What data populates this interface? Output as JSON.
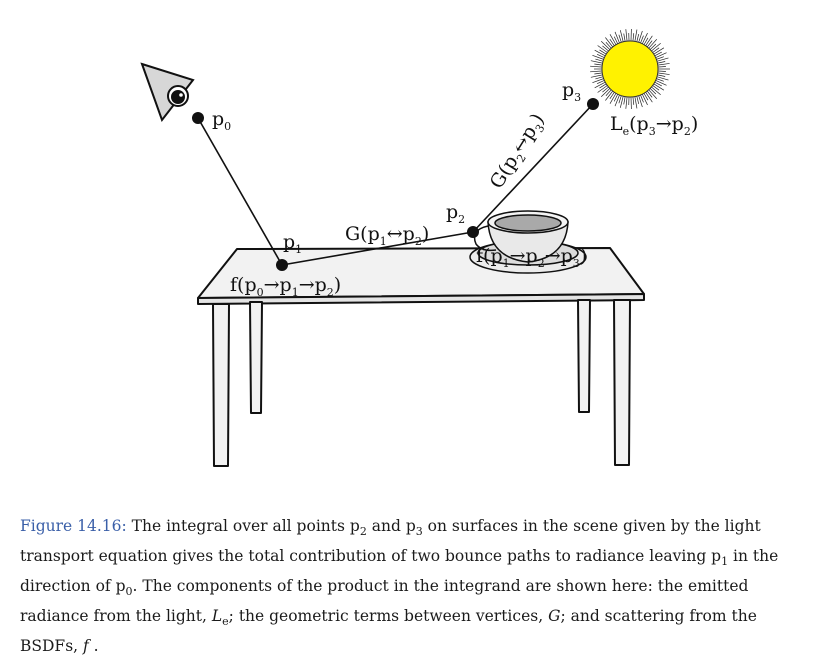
{
  "labels": {
    "p0": "p",
    "p0_sub": "0",
    "p1": "p",
    "p1_sub": "1",
    "p2": "p",
    "p2_sub": "2",
    "p3": "p",
    "p3_sub": "3",
    "f1": "f(p",
    "f1_s1": "0",
    "f1_m1": "→p",
    "f1_s2": "1",
    "f1_m2": "→p",
    "f1_s3": "2",
    "f1_end": ")",
    "g12": "G(p",
    "g12_s1": "1",
    "g12_m": "↔p",
    "g12_s2": "2",
    "g12_end": ")",
    "g23": "G(p",
    "g23_s1": "2",
    "g23_m": "↔p",
    "g23_s2": "3",
    "g23_end": ")",
    "f2": "f(p",
    "f2_s1": "1",
    "f2_m1": "→p",
    "f2_s2": "2",
    "f2_m2": "→p",
    "f2_s3": "3",
    "f2_end": ")",
    "le": "L",
    "le_sub": "e",
    "le_m1": "(p",
    "le_s1": "3",
    "le_m2": "→p",
    "le_s2": "2",
    "le_end": ")"
  },
  "caption": {
    "figure": "Figure 14.16:",
    "t1": " The integral over all points ",
    "p2": "p",
    "p2_sub": "2",
    "t2": " and ",
    "p3": "p",
    "p3_sub": "3",
    "t3": " on surfaces in the scene given by the light transport equation gives the total contribution of two bounce paths to radiance leaving ",
    "p1": "p",
    "p1_sub": "1",
    "t4": " in the direction of ",
    "p0": "p",
    "p0_sub": "0",
    "t5": ". The components of the product in the integrand are shown here: the emitted radiance from the light, ",
    "le": "L",
    "le_sub": "e",
    "t6": "; the geometric terms between vertices, ",
    "g": "G",
    "t7": "; and scattering from the BSDFs, ",
    "f": "f",
    "t8": " ."
  },
  "colors": {
    "sun": "#fff200",
    "ink": "#111111",
    "table": "#f2f2f2",
    "cup_inside": "#a9a9a9",
    "caption_link": "#3a5fa8"
  }
}
